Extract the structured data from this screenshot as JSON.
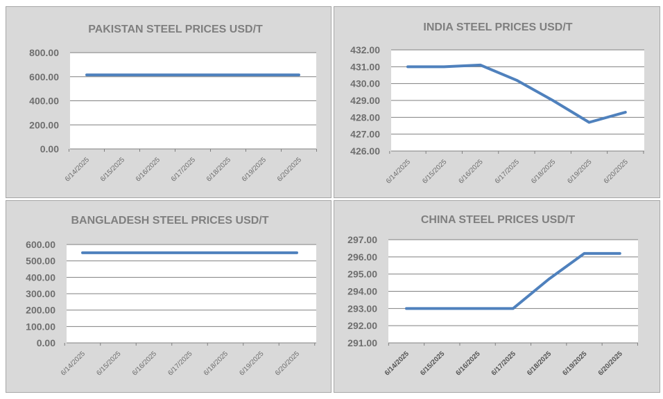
{
  "chart_data": [
    {
      "type": "line",
      "title": "PAKISTAN STEEL PRICES USD/T",
      "categories": [
        "6/14/2025",
        "6/15/2025",
        "6/16/2025",
        "6/17/2025",
        "6/18/2025",
        "6/19/2025",
        "6/20/2025"
      ],
      "yticks": [
        "0.00",
        "200.00",
        "400.00",
        "600.00",
        "800.00"
      ],
      "ylim": [
        0,
        800
      ],
      "series": [
        {
          "values": [
            615,
            615,
            615,
            615,
            615,
            615,
            615
          ]
        }
      ],
      "line_color": "#4f81bd"
    },
    {
      "type": "line",
      "title": "INDIA STEEL PRICES USD/T",
      "categories": [
        "6/14/2025",
        "6/15/2025",
        "6/16/2025",
        "6/17/2025",
        "6/18/2025",
        "6/19/2025",
        "6/20/2025"
      ],
      "yticks": [
        "426.00",
        "427.00",
        "428.00",
        "429.00",
        "430.00",
        "431.00",
        "432.00"
      ],
      "ylim": [
        426,
        432
      ],
      "series": [
        {
          "values": [
            431.0,
            431.0,
            431.1,
            430.2,
            429.0,
            427.7,
            428.3
          ]
        }
      ],
      "line_color": "#4f81bd"
    },
    {
      "type": "line",
      "title": "BANGLADESH STEEL PRICES USD/T",
      "categories": [
        "6/14/2025",
        "6/15/2025",
        "6/16/2025",
        "6/17/2025",
        "6/18/2025",
        "6/19/2025",
        "6/20/2025"
      ],
      "yticks": [
        "0.00",
        "100.00",
        "200.00",
        "300.00",
        "400.00",
        "500.00",
        "600.00"
      ],
      "ylim": [
        0,
        600
      ],
      "series": [
        {
          "values": [
            550,
            550,
            550,
            550,
            550,
            550,
            550
          ]
        }
      ],
      "line_color": "#4f81bd"
    },
    {
      "type": "line",
      "title": "CHINA STEEL PRICES USD/T",
      "categories": [
        "6/14/2025",
        "6/15/2025",
        "6/16/2025",
        "6/17/2025",
        "6/18/2025",
        "6/19/2025",
        "6/20/2025"
      ],
      "yticks": [
        "291.00",
        "292.00",
        "293.00",
        "294.00",
        "295.00",
        "296.00",
        "297.00"
      ],
      "ylim": [
        291,
        297
      ],
      "series": [
        {
          "values": [
            293.0,
            293.0,
            293.0,
            293.0,
            294.7,
            296.2,
            296.2
          ]
        }
      ],
      "line_color": "#4f81bd"
    }
  ]
}
